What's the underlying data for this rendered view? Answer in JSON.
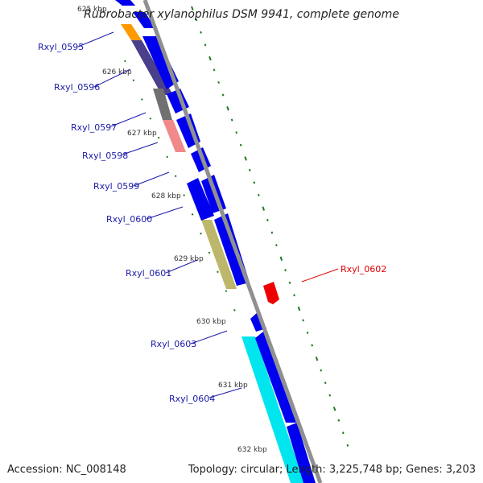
{
  "title": "Rubrobacter xylanophilus DSM 9941, complete genome",
  "footer": {
    "accession": "Accession: NC_008148",
    "summary": "Topology: circular; Length: 3,225,748 bp; Genes: 3,203"
  },
  "colors": {
    "backbone": "#909090",
    "cds": "#0000ee",
    "label_left": "#1a1aa8",
    "label_right": "#e00000",
    "tick": "#1f7a1f",
    "orange": "#ff9900",
    "dark_slate": "#4a3f8a",
    "gray": "#707070",
    "salmon": "#f08a8a",
    "olive": "#bdb76b",
    "cyan": "#00e5ee",
    "red": "#ee0000"
  },
  "kbp_labels": [
    "625 kbp",
    "626 kbp",
    "627 kbp",
    "628 kbp",
    "629 kbp",
    "630 kbp",
    "631 kbp",
    "632 kbp"
  ],
  "genes": [
    {
      "label": "Rxyl_0595",
      "side": "left"
    },
    {
      "label": "Rxyl_0596",
      "side": "left"
    },
    {
      "label": "Rxyl_0597",
      "side": "left"
    },
    {
      "label": "Rxyl_0598",
      "side": "left"
    },
    {
      "label": "Rxyl_0599",
      "side": "left"
    },
    {
      "label": "Rxyl_0600",
      "side": "left"
    },
    {
      "label": "Rxyl_0601",
      "side": "left"
    },
    {
      "label": "Rxyl_0602",
      "side": "right"
    },
    {
      "label": "Rxyl_0603",
      "side": "left"
    },
    {
      "label": "Rxyl_0604",
      "side": "left"
    }
  ]
}
